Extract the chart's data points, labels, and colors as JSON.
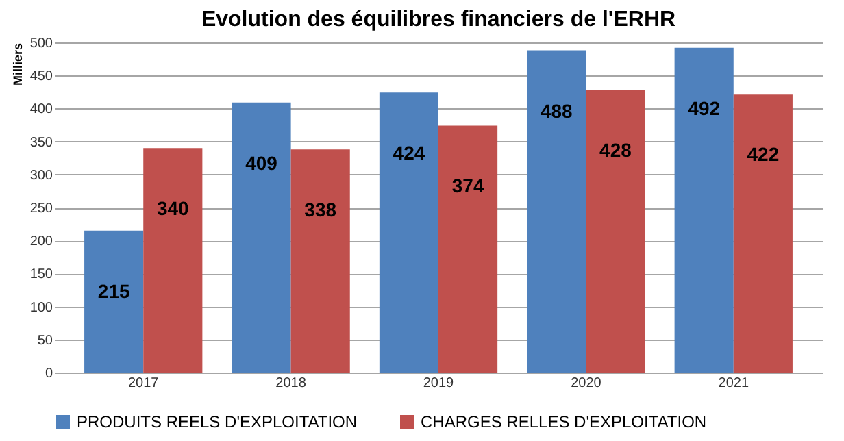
{
  "chart_data": {
    "type": "bar",
    "title": "Evolution des équilibres financiers de l'ERHR",
    "ylabel": "Milliers",
    "categories": [
      "2017",
      "2018",
      "2019",
      "2020",
      "2021"
    ],
    "series": [
      {
        "name": "PRODUITS REELS D'EXPLOITATION",
        "color": "#4f81bd",
        "values": [
          215,
          409,
          424,
          488,
          492
        ]
      },
      {
        "name": "CHARGES RELLES D'EXPLOITATION",
        "color": "#c0504d",
        "values": [
          340,
          338,
          374,
          428,
          422
        ]
      }
    ],
    "ylim": [
      0,
      500
    ],
    "yticks": [
      0,
      50,
      100,
      150,
      200,
      250,
      300,
      350,
      400,
      450,
      500
    ],
    "grid": "y",
    "legend": "bottom",
    "data_labels": true
  }
}
